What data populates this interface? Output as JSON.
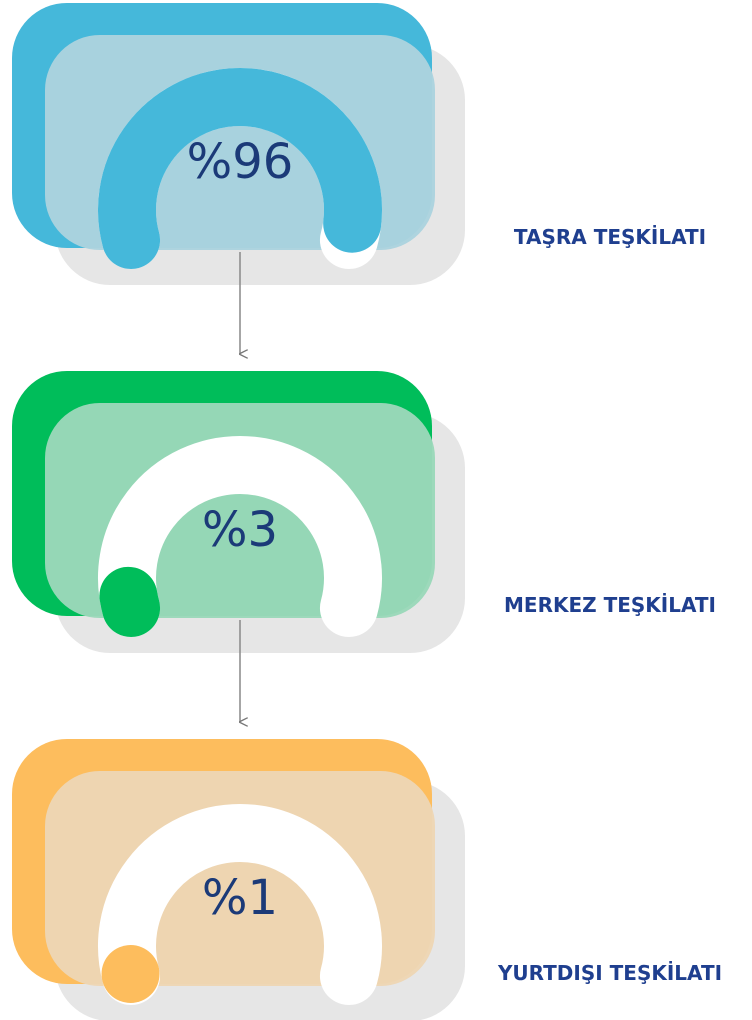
{
  "chart_data": [
    {
      "type": "gauge",
      "categories": [
        "TAŞRA TEŞKİLATI"
      ],
      "values": [
        96
      ],
      "value_labels": [
        "%96"
      ],
      "color": "#45b8da",
      "tile_color": "#abd3de",
      "ylim": [
        0,
        100
      ]
    },
    {
      "type": "gauge",
      "categories": [
        "MERKEZ TEŞKİLATI"
      ],
      "values": [
        3
      ],
      "value_labels": [
        "%3"
      ],
      "color": "#00bd5a",
      "tile_color": "#9ad8b9",
      "ylim": [
        0,
        100
      ]
    },
    {
      "type": "gauge",
      "categories": [
        "YURTDIŞI TEŞKİLATI"
      ],
      "values": [
        1
      ],
      "value_labels": [
        "%1"
      ],
      "color": "#fdbd5d",
      "tile_color": "#edd6b4",
      "ylim": [
        0,
        100
      ]
    }
  ]
}
